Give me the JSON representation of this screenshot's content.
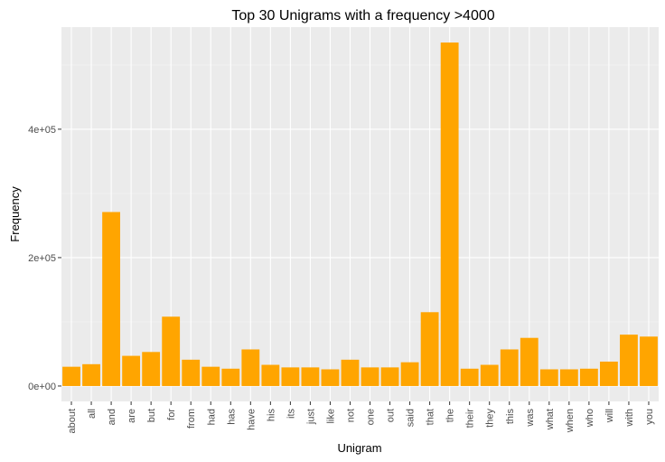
{
  "chart_data": {
    "type": "bar",
    "title": "Top 30 Unigrams with a frequency >4000",
    "xlabel": "Unigram",
    "ylabel": "Frequency",
    "categories": [
      "about",
      "all",
      "and",
      "are",
      "but",
      "for",
      "from",
      "had",
      "has",
      "have",
      "his",
      "its",
      "just",
      "like",
      "not",
      "one",
      "out",
      "said",
      "that",
      "the",
      "their",
      "they",
      "this",
      "was",
      "what",
      "when",
      "who",
      "will",
      "with",
      "you"
    ],
    "values": [
      30000,
      34000,
      271000,
      47000,
      53000,
      108000,
      41000,
      30000,
      27000,
      57000,
      33000,
      29000,
      29000,
      26000,
      41000,
      29000,
      29000,
      37000,
      115000,
      535000,
      27000,
      33000,
      57000,
      75000,
      26000,
      26000,
      27000,
      38000,
      80000,
      77000
    ],
    "ylim": [
      -24000,
      559000
    ],
    "yticks": [
      0,
      200000,
      400000
    ],
    "ytick_labels": [
      "0e+00",
      "2e+05",
      "4e+05"
    ],
    "grid": true,
    "bar_color": "#FFA500",
    "panel_color": "#EBEBEB"
  }
}
